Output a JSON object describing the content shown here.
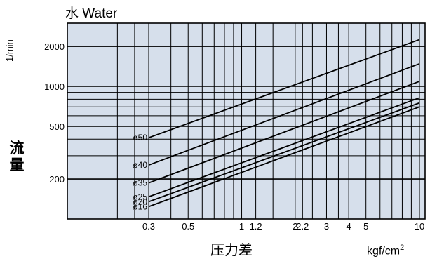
{
  "chart_data": {
    "type": "line",
    "title": "水 Water",
    "ylabel": "流量",
    "yunit": "1/min",
    "xlabel": "压力差",
    "xunit_base": "kgf/cm",
    "xunit_exp": "2",
    "xscale": "log",
    "yscale": "log",
    "xlim": [
      0.3,
      10
    ],
    "ylim": [
      100,
      3000
    ],
    "x_ticks": [
      {
        "value": 0.3,
        "label": "0.3"
      },
      {
        "value": 0.5,
        "label": "0.5"
      },
      {
        "value": 1,
        "label": "1"
      },
      {
        "value": 1.2,
        "label": "1.2"
      },
      {
        "value": 2,
        "label": "2"
      },
      {
        "value": 2.2,
        "label": "2.2"
      },
      {
        "value": 3,
        "label": "3"
      },
      {
        "value": 4,
        "label": "4"
      },
      {
        "value": 5,
        "label": "5"
      },
      {
        "value": 10,
        "label": "10"
      }
    ],
    "y_ticks": [
      {
        "value": 200,
        "label": "200"
      },
      {
        "value": 500,
        "label": "500"
      },
      {
        "value": 1000,
        "label": "1000"
      },
      {
        "value": 2000,
        "label": "2000"
      }
    ],
    "x_grid": [
      0.2,
      0.25,
      0.3,
      0.4,
      0.5,
      0.6,
      0.7,
      0.8,
      0.9,
      1,
      1.2,
      1.5,
      2,
      2.2,
      2.5,
      3,
      3.5,
      4,
      5,
      6,
      7,
      8,
      9,
      10
    ],
    "y_grid": [
      200,
      300,
      400,
      500,
      600,
      700,
      800,
      900,
      1000,
      2000
    ],
    "grid": true,
    "background": "#d6dfeb",
    "series": [
      {
        "name": "ø50",
        "x": [
          0.3,
          10
        ],
        "y": [
          410,
          2250
        ]
      },
      {
        "name": "ø40",
        "x": [
          0.3,
          10
        ],
        "y": [
          255,
          1480
        ]
      },
      {
        "name": "ø35",
        "x": [
          0.3,
          10
        ],
        "y": [
          187,
          1090
        ]
      },
      {
        "name": "ø25",
        "x": [
          0.3,
          10
        ],
        "y": [
          147,
          820
        ]
      },
      {
        "name": "ø20",
        "x": [
          0.3,
          10
        ],
        "y": [
          135,
          750
        ]
      },
      {
        "name": "ø16",
        "x": [
          0.3,
          10
        ],
        "y": [
          124,
          700
        ]
      }
    ]
  }
}
